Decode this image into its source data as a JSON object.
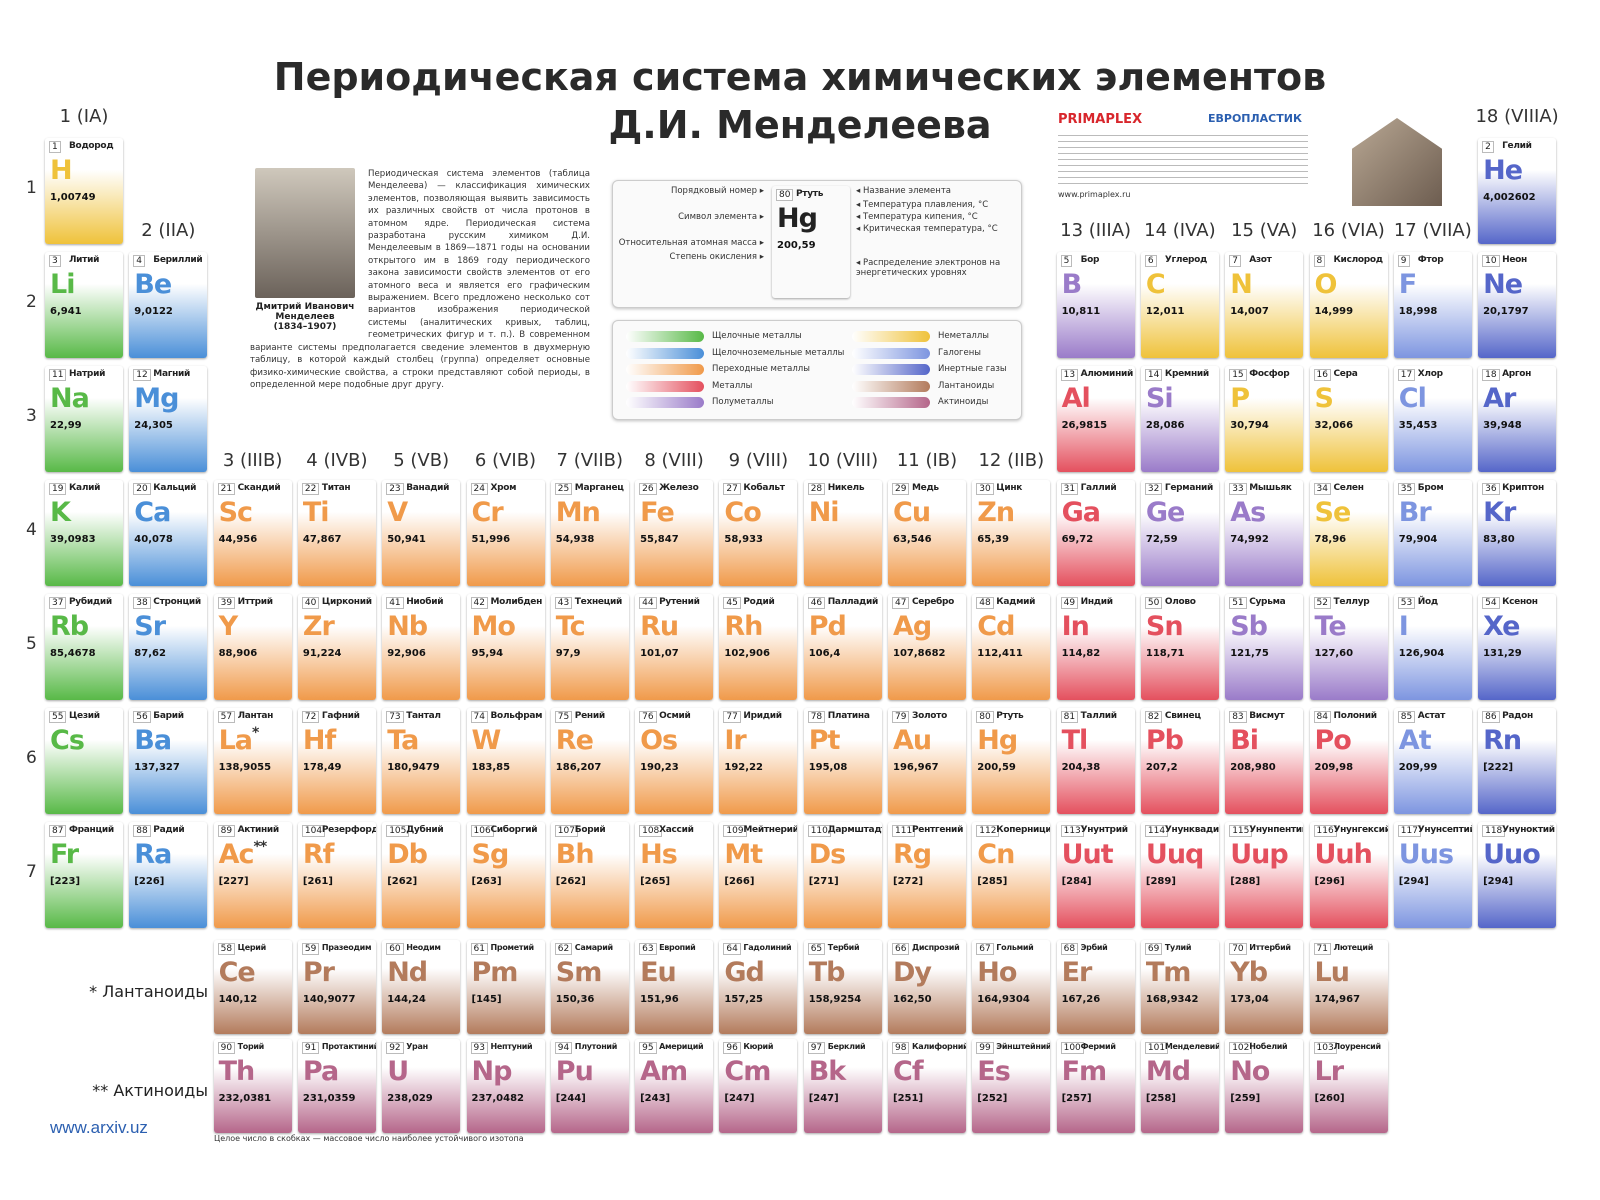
{
  "header": {
    "title_line1": "Периодическая система химических элементов",
    "title_line2": "Д.И. Менделеева"
  },
  "groups": [
    "1 (IA)",
    "2 (IIA)",
    "3 (IIIB)",
    "4 (IVB)",
    "5 (VB)",
    "6 (VIB)",
    "7 (VIIB)",
    "8 (VIII)",
    "9 (VIII)",
    "10 (VIII)",
    "11 (IB)",
    "12 (IIB)",
    "13 (IIIA)",
    "14 (IVA)",
    "15 (VA)",
    "16 (VIA)",
    "17 (VIIA)",
    "18 (VIIIA)"
  ],
  "periods": [
    1,
    2,
    3,
    4,
    5,
    6,
    7
  ],
  "portrait": {
    "caption_name": "Дмитрий Иванович Менделеев",
    "caption_years": "(1834–1907)"
  },
  "intro": "Периодическая система элементов (таблица Менделеева) — классификация химических элементов, позволяющая выявить зависимость их различных свойств от числа протонов в атомном ядре. Периодическая система разработана русским химиком Д.И. Менделеевым в 1869—1871 годы на основании открытого им в 1869 году периодического закона зависимости свойств элементов от его атомного веса и является его графическим выражением. Всего предложено несколько сот вариантов изображения периодической системы (аналитических кривых, таблиц, геометрических фигур и т. п.). В современном варианте системы предполагается сведение элементов в двухмерную таблицу, в которой каждый столбец (группа) определяет основные физико-химические свойства, а строки представляют собой периоды, в определенной мере подобные друг другу.",
  "key": {
    "sample": {
      "number": 80,
      "name": "Ртуть",
      "symbol": "Hg",
      "mass": "200,59"
    },
    "labels_left": [
      "Порядковый номер",
      "Символ элемента",
      "Относительная атомная масса",
      "Степень окисления"
    ],
    "labels_right": [
      "Название элемента",
      "Температура плавления, °C",
      "Температура кипения, °C",
      "Критическая температура, °C",
      "Распределение электронов на энергетических уровнях"
    ]
  },
  "legend": [
    {
      "label": "Щелочные металлы",
      "color": "#58b947"
    },
    {
      "label": "Щелочноземельные металлы",
      "color": "#4a8fd8"
    },
    {
      "label": "Переходные металлы",
      "color": "#f09a4a"
    },
    {
      "label": "Металлы",
      "color": "#e4505e"
    },
    {
      "label": "Полуметаллы",
      "color": "#9a7bc9"
    },
    {
      "label": "Неметаллы",
      "color": "#efc23a"
    },
    {
      "label": "Галогены",
      "color": "#7d95e0"
    },
    {
      "label": "Инертные газы",
      "color": "#5566c9"
    },
    {
      "label": "Лантаноиды",
      "color": "#b37b5c"
    },
    {
      "label": "Актиноиды",
      "color": "#b5668a"
    }
  ],
  "sponsors": {
    "primaplex": "PRIMAPLEX",
    "europlastik": "ЕВРОПЛАСТИК",
    "site": "www.primaplex.ru"
  },
  "elements": [
    {
      "number": 1,
      "symbol": "H",
      "name": "Водород",
      "mass": "1,00749",
      "color": "#efc23a"
    },
    {
      "number": 2,
      "symbol": "He",
      "name": "Гелий",
      "mass": "4,002602",
      "color": "#5566c9"
    },
    {
      "number": 3,
      "symbol": "Li",
      "name": "Литий",
      "mass": "6,941",
      "color": "#58b947"
    },
    {
      "number": 4,
      "symbol": "Be",
      "name": "Бериллий",
      "mass": "9,0122",
      "color": "#4a8fd8"
    },
    {
      "number": 5,
      "symbol": "B",
      "name": "Бор",
      "mass": "10,811",
      "color": "#9a7bc9"
    },
    {
      "number": 6,
      "symbol": "C",
      "name": "Углерод",
      "mass": "12,011",
      "color": "#efc23a"
    },
    {
      "number": 7,
      "symbol": "N",
      "name": "Азот",
      "mass": "14,007",
      "color": "#efc23a"
    },
    {
      "number": 8,
      "symbol": "O",
      "name": "Кислород",
      "mass": "14,999",
      "color": "#efc23a"
    },
    {
      "number": 9,
      "symbol": "F",
      "name": "Фтор",
      "mass": "18,998",
      "color": "#7d95e0"
    },
    {
      "number": 10,
      "symbol": "Ne",
      "name": "Неон",
      "mass": "20,1797",
      "color": "#5566c9"
    },
    {
      "number": 11,
      "symbol": "Na",
      "name": "Натрий",
      "mass": "22,99",
      "color": "#58b947"
    },
    {
      "number": 12,
      "symbol": "Mg",
      "name": "Магний",
      "mass": "24,305",
      "color": "#4a8fd8"
    },
    {
      "number": 13,
      "symbol": "Al",
      "name": "Алюминий",
      "mass": "26,9815",
      "color": "#e4505e"
    },
    {
      "number": 14,
      "symbol": "Si",
      "name": "Кремний",
      "mass": "28,086",
      "color": "#9a7bc9"
    },
    {
      "number": 15,
      "symbol": "P",
      "name": "Фосфор",
      "mass": "30,794",
      "color": "#efc23a"
    },
    {
      "number": 16,
      "symbol": "S",
      "name": "Сера",
      "mass": "32,066",
      "color": "#efc23a"
    },
    {
      "number": 17,
      "symbol": "Cl",
      "name": "Хлор",
      "mass": "35,453",
      "color": "#7d95e0"
    },
    {
      "number": 18,
      "symbol": "Ar",
      "name": "Аргон",
      "mass": "39,948",
      "color": "#5566c9"
    },
    {
      "number": 19,
      "symbol": "K",
      "name": "Калий",
      "mass": "39,0983",
      "color": "#58b947"
    },
    {
      "number": 20,
      "symbol": "Ca",
      "name": "Кальций",
      "mass": "40,078",
      "color": "#4a8fd8"
    },
    {
      "number": 21,
      "symbol": "Sc",
      "name": "Скандий",
      "mass": "44,956",
      "color": "#f09a4a"
    },
    {
      "number": 22,
      "symbol": "Ti",
      "name": "Титан",
      "mass": "47,867",
      "color": "#f09a4a"
    },
    {
      "number": 23,
      "symbol": "V",
      "name": "Ванадий",
      "mass": "50,941",
      "color": "#f09a4a"
    },
    {
      "number": 24,
      "symbol": "Cr",
      "name": "Хром",
      "mass": "51,996",
      "color": "#f09a4a"
    },
    {
      "number": 25,
      "symbol": "Mn",
      "name": "Марганец",
      "mass": "54,938",
      "color": "#f09a4a"
    },
    {
      "number": 26,
      "symbol": "Fe",
      "name": "Железо",
      "mass": "55,847",
      "color": "#f09a4a"
    },
    {
      "number": 27,
      "symbol": "Co",
      "name": "Кобальт",
      "mass": "58,933",
      "color": "#f09a4a"
    },
    {
      "number": 28,
      "symbol": "Ni",
      "name": "Никель",
      "mass": null,
      "color": "#f09a4a"
    },
    {
      "number": 29,
      "symbol": "Cu",
      "name": "Медь",
      "mass": "63,546",
      "color": "#f09a4a"
    },
    {
      "number": 30,
      "symbol": "Zn",
      "name": "Цинк",
      "mass": "65,39",
      "color": "#f09a4a"
    },
    {
      "number": 31,
      "symbol": "Ga",
      "name": "Галлий",
      "mass": "69,72",
      "color": "#e4505e"
    },
    {
      "number": 32,
      "symbol": "Ge",
      "name": "Германий",
      "mass": "72,59",
      "color": "#9a7bc9"
    },
    {
      "number": 33,
      "symbol": "As",
      "name": "Мышьяк",
      "mass": "74,992",
      "color": "#9a7bc9"
    },
    {
      "number": 34,
      "symbol": "Se",
      "name": "Селен",
      "mass": "78,96",
      "color": "#efc23a"
    },
    {
      "number": 35,
      "symbol": "Br",
      "name": "Бром",
      "mass": "79,904",
      "color": "#7d95e0"
    },
    {
      "number": 36,
      "symbol": "Kr",
      "name": "Криптон",
      "mass": "83,80",
      "color": "#5566c9"
    },
    {
      "number": 37,
      "symbol": "Rb",
      "name": "Рубидий",
      "mass": "85,4678",
      "color": "#58b947"
    },
    {
      "number": 38,
      "symbol": "Sr",
      "name": "Стронций",
      "mass": "87,62",
      "color": "#4a8fd8"
    },
    {
      "number": 39,
      "symbol": "Y",
      "name": "Иттрий",
      "mass": "88,906",
      "color": "#f09a4a"
    },
    {
      "number": 40,
      "symbol": "Zr",
      "name": "Цирконий",
      "mass": "91,224",
      "color": "#f09a4a"
    },
    {
      "number": 41,
      "symbol": "Nb",
      "name": "Ниобий",
      "mass": "92,906",
      "color": "#f09a4a"
    },
    {
      "number": 42,
      "symbol": "Mo",
      "name": "Молибден",
      "mass": "95,94",
      "color": "#f09a4a"
    },
    {
      "number": 43,
      "symbol": "Tc",
      "name": "Технеций",
      "mass": "97,9",
      "color": "#f09a4a"
    },
    {
      "number": 44,
      "symbol": "Ru",
      "name": "Рутений",
      "mass": "101,07",
      "color": "#f09a4a"
    },
    {
      "number": 45,
      "symbol": "Rh",
      "name": "Родий",
      "mass": "102,906",
      "color": "#f09a4a"
    },
    {
      "number": 46,
      "symbol": "Pd",
      "name": "Палладий",
      "mass": "106,4",
      "color": "#f09a4a"
    },
    {
      "number": 47,
      "symbol": "Ag",
      "name": "Серебро",
      "mass": "107,8682",
      "color": "#f09a4a"
    },
    {
      "number": 48,
      "symbol": "Cd",
      "name": "Кадмий",
      "mass": "112,411",
      "color": "#f09a4a"
    },
    {
      "number": 49,
      "symbol": "In",
      "name": "Индий",
      "mass": "114,82",
      "color": "#e4505e"
    },
    {
      "number": 50,
      "symbol": "Sn",
      "name": "Олово",
      "mass": "118,71",
      "color": "#e4505e"
    },
    {
      "number": 51,
      "symbol": "Sb",
      "name": "Сурьма",
      "mass": "121,75",
      "color": "#9a7bc9"
    },
    {
      "number": 52,
      "symbol": "Te",
      "name": "Теллур",
      "mass": "127,60",
      "color": "#9a7bc9"
    },
    {
      "number": 53,
      "symbol": "I",
      "name": "Йод",
      "mass": "126,904",
      "color": "#7d95e0"
    },
    {
      "number": 54,
      "symbol": "Xe",
      "name": "Ксенон",
      "mass": "131,29",
      "color": "#5566c9"
    },
    {
      "number": 55,
      "symbol": "Cs",
      "name": "Цезий",
      "mass": null,
      "color": "#58b947"
    },
    {
      "number": 56,
      "symbol": "Ba",
      "name": "Барий",
      "mass": "137,327",
      "color": "#4a8fd8"
    },
    {
      "number": 57,
      "symbol": "La",
      "name": "Лантан",
      "mass": "138,9055",
      "color": "#f09a4a",
      "note": "*"
    },
    {
      "number": 58,
      "symbol": "Ce",
      "name": "Церий",
      "mass": "140,12",
      "color": "#b37b5c"
    },
    {
      "number": 59,
      "symbol": "Pr",
      "name": "Празеодим",
      "mass": "140,9077",
      "color": "#b37b5c"
    },
    {
      "number": 60,
      "symbol": "Nd",
      "name": "Неодим",
      "mass": "144,24",
      "color": "#b37b5c"
    },
    {
      "number": 61,
      "symbol": "Pm",
      "name": "Прометий",
      "mass": "[145]",
      "color": "#b37b5c"
    },
    {
      "number": 62,
      "symbol": "Sm",
      "name": "Самарий",
      "mass": "150,36",
      "color": "#b37b5c"
    },
    {
      "number": 63,
      "symbol": "Eu",
      "name": "Европий",
      "mass": "151,96",
      "color": "#b37b5c"
    },
    {
      "number": 64,
      "symbol": "Gd",
      "name": "Гадолиний",
      "mass": "157,25",
      "color": "#b37b5c"
    },
    {
      "number": 65,
      "symbol": "Tb",
      "name": "Тербий",
      "mass": "158,9254",
      "color": "#b37b5c"
    },
    {
      "number": 66,
      "symbol": "Dy",
      "name": "Диспрозий",
      "mass": "162,50",
      "color": "#b37b5c"
    },
    {
      "number": 67,
      "symbol": "Ho",
      "name": "Гольмий",
      "mass": "164,9304",
      "color": "#b37b5c"
    },
    {
      "number": 68,
      "symbol": "Er",
      "name": "Эрбий",
      "mass": "167,26",
      "color": "#b37b5c"
    },
    {
      "number": 69,
      "symbol": "Tm",
      "name": "Тулий",
      "mass": "168,9342",
      "color": "#b37b5c"
    },
    {
      "number": 70,
      "symbol": "Yb",
      "name": "Иттербий",
      "mass": "173,04",
      "color": "#b37b5c"
    },
    {
      "number": 71,
      "symbol": "Lu",
      "name": "Лютеций",
      "mass": "174,967",
      "color": "#b37b5c"
    },
    {
      "number": 72,
      "symbol": "Hf",
      "name": "Гафний",
      "mass": "178,49",
      "color": "#f09a4a"
    },
    {
      "number": 73,
      "symbol": "Ta",
      "name": "Тантал",
      "mass": "180,9479",
      "color": "#f09a4a"
    },
    {
      "number": 74,
      "symbol": "W",
      "name": "Вольфрам",
      "mass": "183,85",
      "color": "#f09a4a"
    },
    {
      "number": 75,
      "symbol": "Re",
      "name": "Рений",
      "mass": "186,207",
      "color": "#f09a4a"
    },
    {
      "number": 76,
      "symbol": "Os",
      "name": "Осмий",
      "mass": "190,23",
      "color": "#f09a4a"
    },
    {
      "number": 77,
      "symbol": "Ir",
      "name": "Иридий",
      "mass": "192,22",
      "color": "#f09a4a"
    },
    {
      "number": 78,
      "symbol": "Pt",
      "name": "Платина",
      "mass": "195,08",
      "color": "#f09a4a"
    },
    {
      "number": 79,
      "symbol": "Au",
      "name": "Золото",
      "mass": "196,967",
      "color": "#f09a4a"
    },
    {
      "number": 80,
      "symbol": "Hg",
      "name": "Ртуть",
      "mass": "200,59",
      "color": "#f09a4a"
    },
    {
      "number": 81,
      "symbol": "Tl",
      "name": "Таллий",
      "mass": "204,38",
      "color": "#e4505e"
    },
    {
      "number": 82,
      "symbol": "Pb",
      "name": "Свинец",
      "mass": "207,2",
      "color": "#e4505e"
    },
    {
      "number": 83,
      "symbol": "Bi",
      "name": "Висмут",
      "mass": "208,980",
      "color": "#e4505e"
    },
    {
      "number": 84,
      "symbol": "Po",
      "name": "Полоний",
      "mass": "209,98",
      "color": "#e4505e"
    },
    {
      "number": 85,
      "symbol": "At",
      "name": "Астат",
      "mass": "209,99",
      "color": "#7d95e0"
    },
    {
      "number": 86,
      "symbol": "Rn",
      "name": "Радон",
      "mass": "[222]",
      "color": "#5566c9"
    },
    {
      "number": 87,
      "symbol": "Fr",
      "name": "Франций",
      "mass": "[223]",
      "color": "#58b947"
    },
    {
      "number": 88,
      "symbol": "Ra",
      "name": "Радий",
      "mass": "[226]",
      "color": "#4a8fd8"
    },
    {
      "number": 89,
      "symbol": "Ac",
      "name": "Актиний",
      "mass": "[227]",
      "color": "#f09a4a",
      "note": "**"
    },
    {
      "number": 90,
      "symbol": "Th",
      "name": "Торий",
      "mass": "232,0381",
      "color": "#b5668a"
    },
    {
      "number": 91,
      "symbol": "Pa",
      "name": "Протактиний",
      "mass": "231,0359",
      "color": "#b5668a"
    },
    {
      "number": 92,
      "symbol": "U",
      "name": "Уран",
      "mass": "238,029",
      "color": "#b5668a"
    },
    {
      "number": 93,
      "symbol": "Np",
      "name": "Нептуний",
      "mass": "237,0482",
      "color": "#b5668a"
    },
    {
      "number": 94,
      "symbol": "Pu",
      "name": "Плутоний",
      "mass": "[244]",
      "color": "#b5668a"
    },
    {
      "number": 95,
      "symbol": "Am",
      "name": "Америций",
      "mass": "[243]",
      "color": "#b5668a"
    },
    {
      "number": 96,
      "symbol": "Cm",
      "name": "Кюрий",
      "mass": "[247]",
      "color": "#b5668a"
    },
    {
      "number": 97,
      "symbol": "Bk",
      "name": "Берклий",
      "mass": "[247]",
      "color": "#b5668a"
    },
    {
      "number": 98,
      "symbol": "Cf",
      "name": "Калифорний",
      "mass": "[251]",
      "color": "#b5668a"
    },
    {
      "number": 99,
      "symbol": "Es",
      "name": "Эйнштейний",
      "mass": "[252]",
      "color": "#b5668a"
    },
    {
      "number": 100,
      "symbol": "Fm",
      "name": "Фермий",
      "mass": "[257]",
      "color": "#b5668a"
    },
    {
      "number": 101,
      "symbol": "Md",
      "name": "Менделевий",
      "mass": "[258]",
      "color": "#b5668a"
    },
    {
      "number": 102,
      "symbol": "No",
      "name": "Нобелий",
      "mass": "[259]",
      "color": "#b5668a"
    },
    {
      "number": 103,
      "symbol": "Lr",
      "name": "Лоуренсий",
      "mass": "[260]",
      "color": "#b5668a"
    },
    {
      "number": 104,
      "symbol": "Rf",
      "name": "Резерфордий",
      "mass": "[261]",
      "color": "#f09a4a"
    },
    {
      "number": 105,
      "symbol": "Db",
      "name": "Дубний",
      "mass": "[262]",
      "color": "#f09a4a"
    },
    {
      "number": 106,
      "symbol": "Sg",
      "name": "Сиборгий",
      "mass": "[263]",
      "color": "#f09a4a"
    },
    {
      "number": 107,
      "symbol": "Bh",
      "name": "Борий",
      "mass": "[262]",
      "color": "#f09a4a"
    },
    {
      "number": 108,
      "symbol": "Hs",
      "name": "Хассий",
      "mass": "[265]",
      "color": "#f09a4a"
    },
    {
      "number": 109,
      "symbol": "Mt",
      "name": "Мейтнерий",
      "mass": "[266]",
      "color": "#f09a4a"
    },
    {
      "number": 110,
      "symbol": "Ds",
      "name": "Дармштадтий",
      "mass": "[271]",
      "color": "#f09a4a"
    },
    {
      "number": 111,
      "symbol": "Rg",
      "name": "Рентгений",
      "mass": "[272]",
      "color": "#f09a4a"
    },
    {
      "number": 112,
      "symbol": "Cn",
      "name": "Коперниций",
      "mass": "[285]",
      "color": "#f09a4a"
    },
    {
      "number": 113,
      "symbol": "Uut",
      "name": "Унунтрий",
      "mass": "[284]",
      "color": "#e4505e"
    },
    {
      "number": 114,
      "symbol": "Uuq",
      "name": "Унунквадий",
      "mass": "[289]",
      "color": "#e4505e"
    },
    {
      "number": 115,
      "symbol": "Uup",
      "name": "Унунпентий",
      "mass": "[288]",
      "color": "#e4505e"
    },
    {
      "number": 116,
      "symbol": "Uuh",
      "name": "Унунгексий",
      "mass": "[296]",
      "color": "#e4505e"
    },
    {
      "number": 117,
      "symbol": "Uus",
      "name": "Унунсептий",
      "mass": "[294]",
      "color": "#7d95e0"
    },
    {
      "number": 118,
      "symbol": "Uuo",
      "name": "Унуноктий",
      "mass": "[294]",
      "color": "#5566c9"
    }
  ],
  "series_labels": {
    "lanthanides": "* Лантаноиды",
    "actinides": "** Актиноиды"
  },
  "footnote": "Целое число в скобках — массовое число наиболее устойчивого изотопа",
  "watermark": "www.arxiv.uz"
}
